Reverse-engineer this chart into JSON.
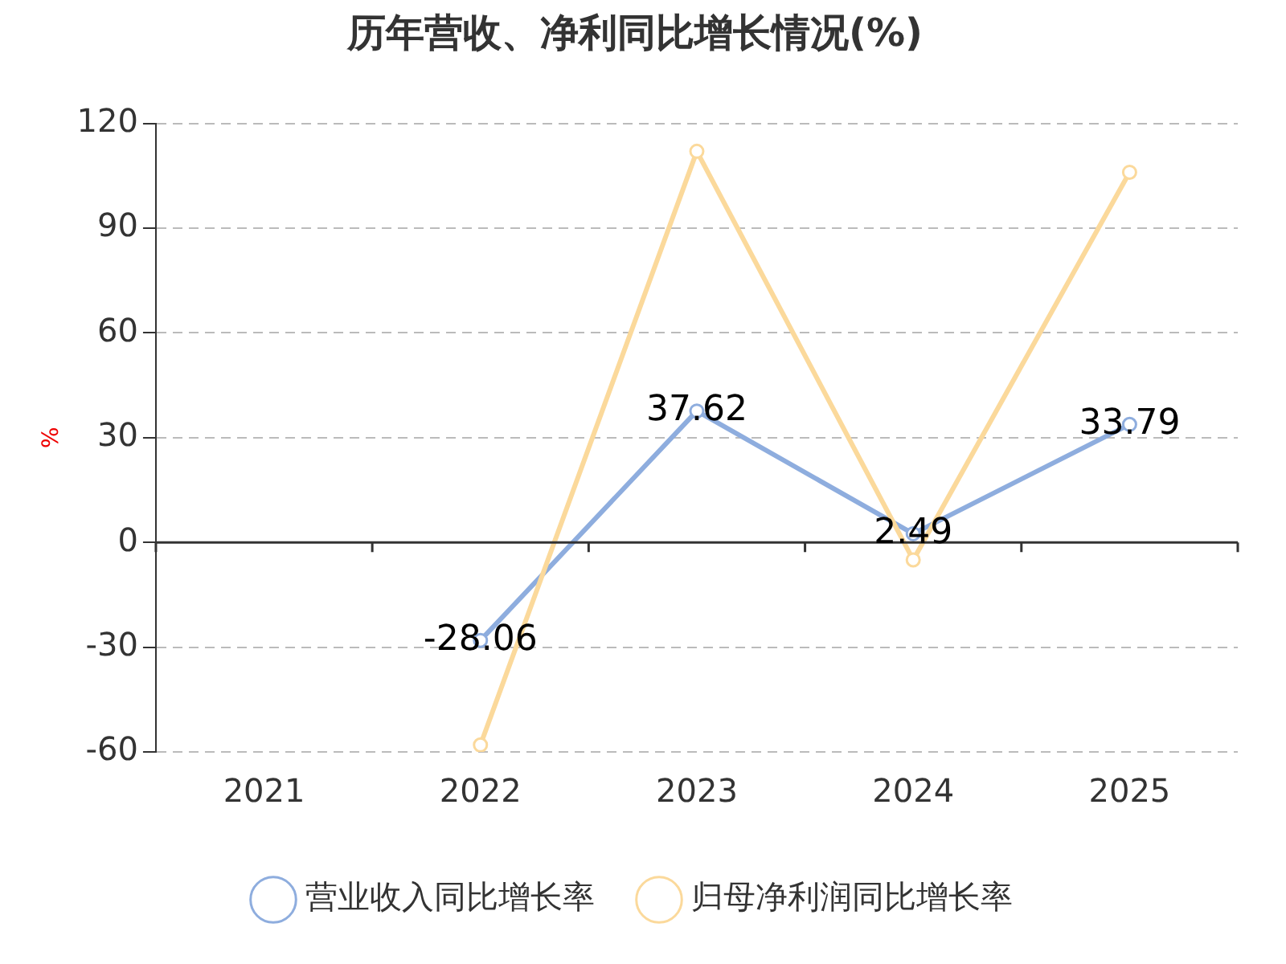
{
  "chart_data": {
    "type": "line",
    "title": "历年营收、净利同比增长情况(%)",
    "ylabel": "%",
    "categories": [
      "2021",
      "2022",
      "2023",
      "2024",
      "2025"
    ],
    "series": [
      {
        "name": "营业收入同比增长率",
        "color": "#8eadde",
        "values": [
          null,
          -28.06,
          37.62,
          2.49,
          33.79
        ],
        "value_labels": [
          null,
          "-28.06",
          "37.62",
          "2.49",
          "33.79"
        ]
      },
      {
        "name": "归母净利润同比增长率",
        "color": "#fbd99b",
        "values": [
          null,
          -58,
          112,
          -5,
          106
        ]
      }
    ],
    "ylim": [
      -60,
      120
    ],
    "yticks": [
      -60,
      -30,
      0,
      30,
      60,
      90,
      120
    ],
    "grid": "y",
    "legend": "bottom",
    "marker": "circle",
    "line_style": "solid"
  }
}
